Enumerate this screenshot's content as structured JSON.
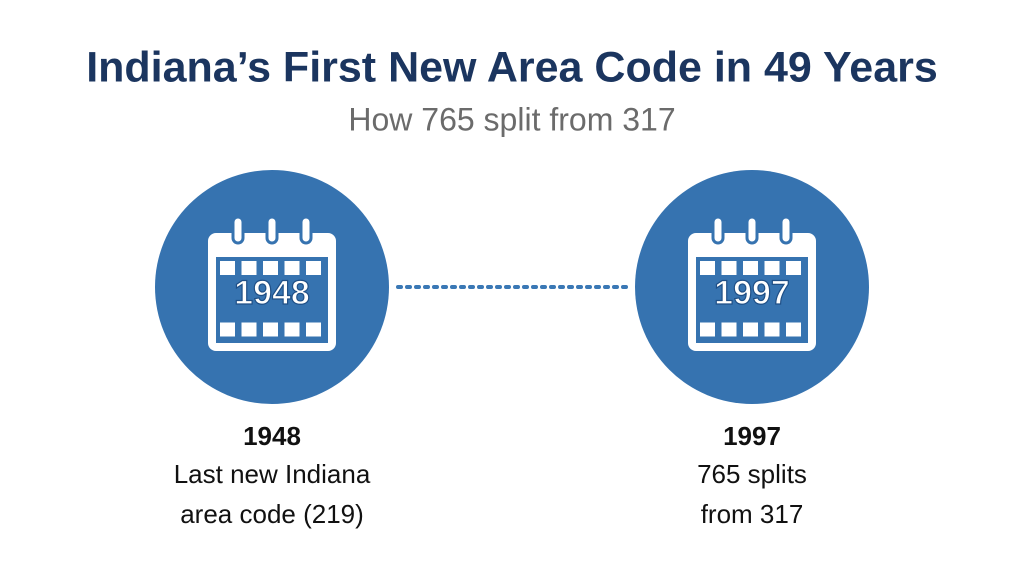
{
  "header": {
    "title": "Indiana’s First New Area Code in 49 Years",
    "subtitle": "How 765 split from 317"
  },
  "milestones": [
    {
      "year": "1948",
      "description": [
        "Last new Indiana",
        "area code (219)"
      ]
    },
    {
      "year": "1997",
      "description": [
        "765 splits",
        "from 317"
      ]
    }
  ]
}
